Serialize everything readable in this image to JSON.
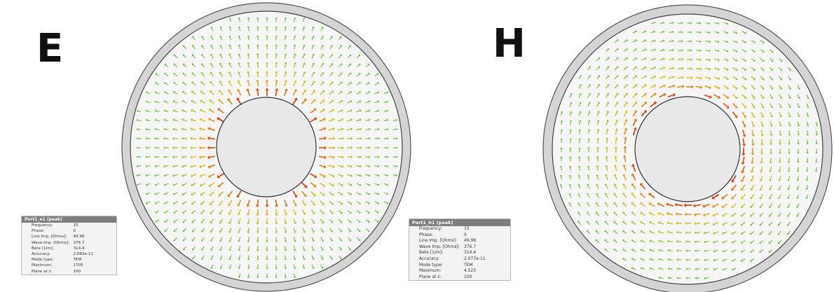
{
  "labels": {
    "e": "E",
    "h": "H"
  },
  "colors": {
    "field_low": "#2cc23a",
    "field_mid": "#e0c020",
    "field_high": "#cc1a10",
    "outer_ring": "#d4d4d4",
    "inner_fill": "#f5f5f5",
    "conductor": "#e8e8e8",
    "info_header": "#7d7d7d"
  },
  "panels": [
    {
      "id": "e",
      "field_type": "radial",
      "info": {
        "header": "Port1_e1 (peak)",
        "rows": [
          {
            "label": "Frequency:",
            "value": "15"
          },
          {
            "label": "Phase:",
            "value": "0"
          },
          {
            "label": "Line Imp. [Ohms]:",
            "value": "49.96"
          },
          {
            "label": "Wave Imp. [Ohms]:",
            "value": "376.7"
          },
          {
            "label": "Beta [1/m]:",
            "value": "314.4"
          },
          {
            "label": "Accuracy:",
            "value": "2.082e-11"
          },
          {
            "label": "Mode type:",
            "value": "TEM"
          },
          {
            "label": "Maximum:",
            "value": "1705"
          },
          {
            "label": "Plane at z:",
            "value": "100"
          }
        ]
      }
    },
    {
      "id": "h",
      "field_type": "azimuthal",
      "info": {
        "header": "Port1_h1 (peak)",
        "rows": [
          {
            "label": "Frequency:",
            "value": "15"
          },
          {
            "label": "Phase:",
            "value": "0"
          },
          {
            "label": "Line Imp. [Ohms]:",
            "value": "49.96"
          },
          {
            "label": "Wave Imp. [Ohms]:",
            "value": "376.7"
          },
          {
            "label": "Beta [1/m]:",
            "value": "314.4"
          },
          {
            "label": "Accuracy:",
            "value": "2.077e-11"
          },
          {
            "label": "Mode type:",
            "value": "TEM"
          },
          {
            "label": "Maximum:",
            "value": "4.525"
          },
          {
            "label": "Plane at z:",
            "value": "100"
          }
        ]
      }
    }
  ]
}
